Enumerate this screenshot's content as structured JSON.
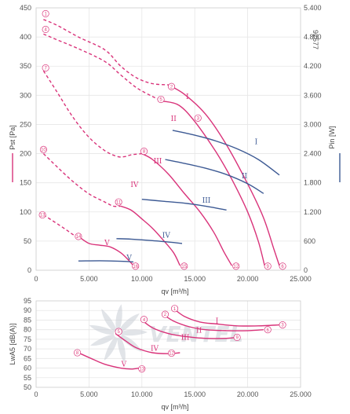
{
  "figure_id": "92577",
  "colors": {
    "pressure": "#d9337a",
    "power": "#3d5a94",
    "grid": "#e6e6e6",
    "watermark": "#c9ced6"
  },
  "watermark": "VENTEL",
  "chart_data": [
    {
      "type": "line",
      "xlabel": "qv [m³/h]",
      "ylabel": "Pst [Pa]",
      "y2label": "Pin [W]",
      "xlim": [
        0,
        25000
      ],
      "ylim": [
        0,
        450
      ],
      "y2lim": [
        0,
        5400
      ],
      "xticks": [
        0,
        5000,
        10000,
        15000,
        20000,
        25000
      ],
      "xtick_labels": [
        "0",
        "5.000",
        "10.000",
        "15.000",
        "20.000",
        "25.000"
      ],
      "yticks": [
        0,
        50,
        100,
        150,
        200,
        250,
        300,
        350,
        400,
        450
      ],
      "ytick_labels": [
        "0",
        "50",
        "100",
        "150",
        "200",
        "250",
        "300",
        "350",
        "400",
        "450"
      ],
      "y2ticks": [
        0,
        600,
        1200,
        1800,
        2400,
        3000,
        3600,
        4200,
        4800,
        5400
      ],
      "y2tick_labels": [
        "0",
        "600",
        "1.200",
        "1.800",
        "2.400",
        "3.000",
        "3.600",
        "4.200",
        "4.800",
        "5.400"
      ],
      "grid": true,
      "pressure_unstable": [
        {
          "x": [
            700,
            2000,
            4000,
            6500,
            8000,
            9500,
            11000,
            12500
          ],
          "y": [
            430,
            420,
            400,
            378,
            350,
            330,
            320,
            318
          ]
        },
        {
          "x": [
            700,
            2000,
            4000,
            6500,
            8000,
            9500,
            11000,
            12000
          ],
          "y": [
            405,
            395,
            380,
            358,
            335,
            313,
            298,
            290
          ]
        },
        {
          "x": [
            700,
            2000,
            3500,
            5000,
            6500,
            7700,
            8400,
            9000,
            10000
          ],
          "y": [
            342,
            305,
            262,
            228,
            205,
            195,
            195,
            198,
            200
          ]
        },
        {
          "x": [
            700,
            2000,
            3500,
            5000,
            6500,
            7300,
            8000
          ],
          "y": [
            200,
            177,
            152,
            131,
            117,
            110,
            110
          ]
        },
        {
          "x": [
            700,
            1800,
            2800,
            3600,
            4000
          ],
          "y": [
            95,
            82,
            70,
            60,
            58
          ]
        }
      ],
      "series": [
        {
          "name": "I",
          "kind": "pressure",
          "x": [
            12500,
            14000,
            16000,
            18000,
            20000,
            21500,
            22500,
            23000
          ],
          "y": [
            318,
            302,
            268,
            215,
            148,
            90,
            35,
            8
          ]
        },
        {
          "name": "II",
          "kind": "pressure",
          "x": [
            12000,
            13500,
            15000,
            17000,
            18500,
            20000,
            21000,
            21600
          ],
          "y": [
            290,
            283,
            255,
            203,
            156,
            100,
            50,
            8
          ]
        },
        {
          "name": "III",
          "kind": "pressure",
          "x": [
            10000,
            11000,
            12500,
            14000,
            15500,
            16800,
            17800,
            18500
          ],
          "y": [
            200,
            190,
            165,
            132,
            100,
            65,
            30,
            8
          ]
        },
        {
          "name": "IV",
          "kind": "pressure",
          "x": [
            8000,
            9000,
            10000,
            11000,
            12000,
            13000,
            13600
          ],
          "y": [
            110,
            103,
            88,
            72,
            52,
            30,
            8
          ]
        },
        {
          "name": "V",
          "kind": "pressure",
          "x": [
            4000,
            5000,
            6000,
            7000,
            8000,
            8700,
            9200
          ],
          "y": [
            58,
            46,
            43,
            40,
            30,
            18,
            8
          ]
        },
        {
          "name": "I",
          "kind": "power",
          "x": [
            12900,
            15000,
            17000,
            19000,
            21000,
            23000
          ],
          "y": [
            2880,
            2780,
            2660,
            2500,
            2280,
            1960
          ]
        },
        {
          "name": "II",
          "kind": "power",
          "x": [
            12200,
            14000,
            16000,
            18000,
            20000,
            21500
          ],
          "y": [
            2280,
            2200,
            2100,
            1970,
            1780,
            1580
          ]
        },
        {
          "name": "III",
          "kind": "power",
          "x": [
            10000,
            12000,
            14000,
            16000,
            18000
          ],
          "y": [
            1460,
            1420,
            1380,
            1320,
            1240
          ]
        },
        {
          "name": "IV",
          "kind": "power",
          "x": [
            7600,
            9000,
            11000,
            13000,
            13800
          ],
          "y": [
            650,
            640,
            610,
            570,
            550
          ]
        },
        {
          "name": "V",
          "kind": "power",
          "x": [
            4000,
            6000,
            8000,
            9200
          ],
          "y": [
            190,
            195,
            185,
            170
          ]
        }
      ],
      "curve_labels": [
        {
          "text": "I",
          "x": 14300,
          "y": 298,
          "color": "pressure"
        },
        {
          "text": "II",
          "x": 13000,
          "y": 260,
          "color": "pressure"
        },
        {
          "text": "III",
          "x": 11500,
          "y": 187,
          "color": "pressure"
        },
        {
          "text": "IV",
          "x": 9300,
          "y": 147,
          "color": "pressure"
        },
        {
          "text": "V",
          "x": 6700,
          "y": 47,
          "color": "pressure"
        },
        {
          "text": "I",
          "x": 20800,
          "y": 2640,
          "color": "power"
        },
        {
          "text": "II",
          "x": 19700,
          "y": 1940,
          "color": "power"
        },
        {
          "text": "III",
          "x": 16100,
          "y": 1440,
          "color": "power"
        },
        {
          "text": "IV",
          "x": 12300,
          "y": 720,
          "color": "power"
        },
        {
          "text": "V",
          "x": 8800,
          "y": 260,
          "color": "power"
        }
      ],
      "markers": [
        {
          "n": "1",
          "x": 900,
          "y": 440
        },
        {
          "n": "4",
          "x": 900,
          "y": 413
        },
        {
          "n": "7",
          "x": 900,
          "y": 347
        },
        {
          "n": "10",
          "x": 700,
          "y": 207
        },
        {
          "n": "13",
          "x": 600,
          "y": 95
        },
        {
          "n": "2",
          "x": 12800,
          "y": 315
        },
        {
          "n": "5",
          "x": 11800,
          "y": 293
        },
        {
          "n": "8",
          "x": 10200,
          "y": 204
        },
        {
          "n": "11",
          "x": 7800,
          "y": 117
        },
        {
          "n": "14",
          "x": 4000,
          "y": 58
        },
        {
          "n": "3",
          "x": 15300,
          "y": 261
        },
        {
          "n": "6",
          "x": 23300,
          "y": 7
        },
        {
          "n": "9",
          "x": 21900,
          "y": 7
        },
        {
          "n": "12",
          "x": 18900,
          "y": 7
        },
        {
          "n": "15",
          "x": 14000,
          "y": 7
        },
        {
          "n": "16",
          "x": 9400,
          "y": 7
        }
      ]
    },
    {
      "type": "line",
      "xlabel": "qv [m³/h]",
      "ylabel": "LwA5 [dB(A)]",
      "xlim": [
        0,
        25000
      ],
      "ylim": [
        50,
        95
      ],
      "xticks": [
        0,
        5000,
        10000,
        15000,
        20000,
        25000
      ],
      "xtick_labels": [
        "0",
        "5.000",
        "10.000",
        "15.000",
        "20.000",
        "25.000"
      ],
      "yticks": [
        50,
        55,
        60,
        65,
        70,
        75,
        80,
        85,
        90,
        95
      ],
      "ytick_labels": [
        "50",
        "55",
        "60",
        "65",
        "70",
        "75",
        "80",
        "85",
        "90",
        "95"
      ],
      "grid": true,
      "series": [
        {
          "name": "I",
          "x": [
            13000,
            14000,
            15500,
            17000,
            19000,
            21000,
            23000
          ],
          "y": [
            91,
            87,
            84,
            83,
            82,
            82,
            82.5
          ]
        },
        {
          "name": "II",
          "x": [
            12000,
            13000,
            14500,
            16000,
            18000,
            20000,
            21500
          ],
          "y": [
            88,
            84.5,
            81.5,
            80,
            79.5,
            79.5,
            80
          ]
        },
        {
          "name": "III",
          "x": [
            10000,
            11000,
            12500,
            14000,
            16000,
            18000,
            19000
          ],
          "y": [
            85,
            81,
            78,
            76.5,
            75.5,
            75.5,
            76
          ]
        },
        {
          "name": "IV",
          "x": [
            7500,
            8500,
            9500,
            11000,
            12500,
            13600
          ],
          "y": [
            78,
            74,
            70.5,
            68,
            67.5,
            68
          ]
        },
        {
          "name": "V",
          "x": [
            4000,
            5200,
            6500,
            8000,
            9000,
            9700
          ],
          "y": [
            68,
            65,
            62,
            60,
            59.5,
            60
          ]
        }
      ],
      "curve_labels": [
        {
          "text": "I",
          "x": 17100,
          "y": 84.5
        },
        {
          "text": "II",
          "x": 15400,
          "y": 79.6
        },
        {
          "text": "III",
          "x": 14100,
          "y": 76
        },
        {
          "text": "IV",
          "x": 11200,
          "y": 70.2
        },
        {
          "text": "V",
          "x": 8300,
          "y": 62.1
        }
      ],
      "markers": [
        {
          "n": "1",
          "x": 13100,
          "y": 91
        },
        {
          "n": "2",
          "x": 12200,
          "y": 88
        },
        {
          "n": "3",
          "x": 23300,
          "y": 82.5
        },
        {
          "n": "4",
          "x": 10200,
          "y": 85.3
        },
        {
          "n": "5",
          "x": 7800,
          "y": 79
        },
        {
          "n": "6",
          "x": 21900,
          "y": 80
        },
        {
          "n": "8",
          "x": 3900,
          "y": 68
        },
        {
          "n": "9",
          "x": 19000,
          "y": 76
        },
        {
          "n": "12",
          "x": 12800,
          "y": 67.8
        },
        {
          "n": "13",
          "x": 10000,
          "y": 59.6
        }
      ]
    }
  ]
}
